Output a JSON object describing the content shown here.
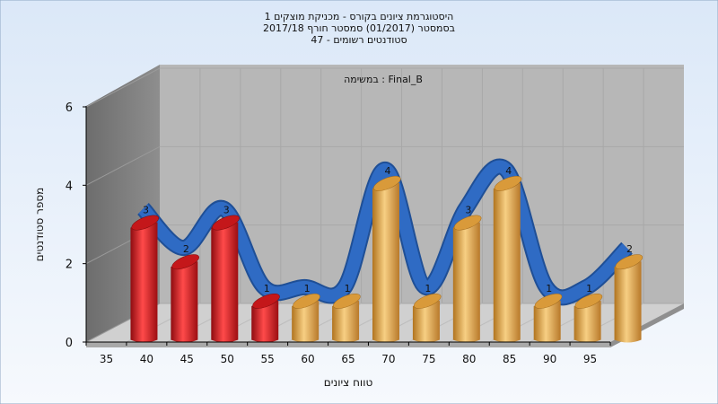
{
  "chart_data": {
    "type": "bar",
    "title_lines": [
      "היסטוגרמת ציונים בקורס - מכניקת מוצקים 1",
      "בסמסטר  (01/2017)  סמסטר חורף 2017/18",
      "סטודנטים רשומים - 47"
    ],
    "assignment_label": "במשימה : Final_B",
    "xlabel": "טווח ציונים",
    "ylabel": "מספר סטודנטים",
    "categories": [
      "35",
      "40",
      "45",
      "50",
      "55",
      "60",
      "65",
      "70",
      "75",
      "80",
      "85",
      "90",
      "95"
    ],
    "values": [
      3,
      2,
      3,
      1,
      1,
      1,
      4,
      1,
      3,
      4,
      1,
      1,
      2
    ],
    "bar_colors": [
      "red",
      "red",
      "red",
      "red",
      "gold",
      "gold",
      "gold",
      "gold",
      "gold",
      "gold",
      "gold",
      "gold",
      "gold"
    ],
    "y_ticks": [
      "0",
      "2",
      "4",
      "6"
    ],
    "ylim": [
      0,
      6
    ],
    "grid": true,
    "has_trend_ribbon": true,
    "colors": {
      "background_top": "#dbe8f8",
      "background_bottom": "#f6f9fd",
      "plot_back": "#b7b7b7",
      "floor": "#cfcfcf",
      "side_wall": "#7d7d7d",
      "red_bar": "#e8262a",
      "gold_bar": "#e5a94a",
      "ribbon": "#2f6bc4"
    }
  }
}
